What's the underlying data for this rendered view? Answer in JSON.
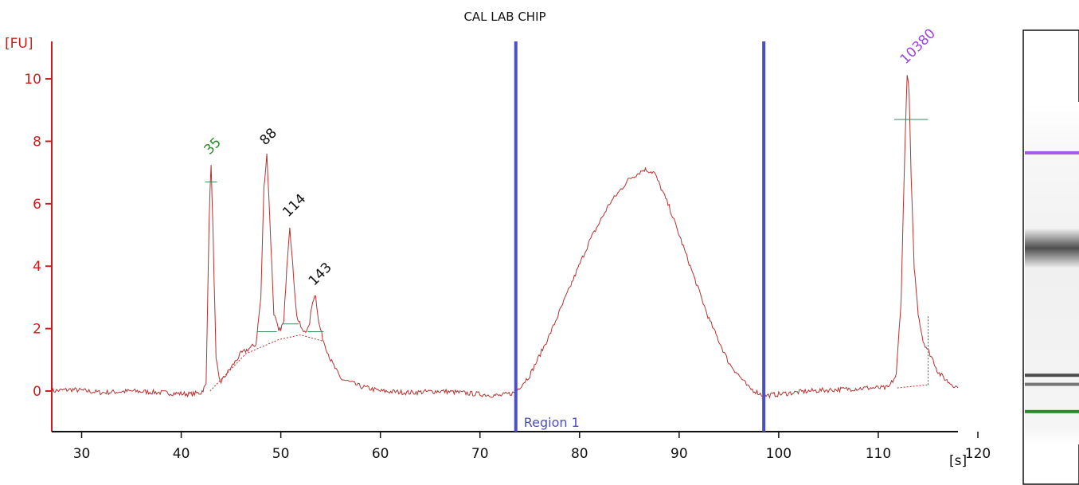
{
  "chart_data": {
    "type": "line",
    "title": "CAL LAB CHIP",
    "xlabel": "[s]",
    "ylabel": "[FU]",
    "xlim": [
      27,
      118
    ],
    "ylim": [
      -1.3,
      11.2
    ],
    "x_ticks": [
      30,
      40,
      50,
      60,
      70,
      80,
      90,
      100,
      110,
      120
    ],
    "y_ticks": [
      0,
      2,
      4,
      6,
      8,
      10
    ],
    "grid": false,
    "colors": {
      "trace": "#b5322f",
      "axis": "#d11a1a",
      "region": "#4b4fc2",
      "marker_label": "#2a8a2a",
      "upper_marker_label": "#9a46e6",
      "peak_label": "#111111"
    },
    "series": [
      {
        "x": [
          27,
          29,
          32,
          35,
          38,
          41,
          42,
          42.5,
          42.8,
          43.0,
          43.2,
          43.5,
          43.8,
          44,
          46,
          47.5,
          48.0,
          48.3,
          48.6,
          48.9,
          49.3,
          49.8,
          50.3,
          50.6,
          50.9,
          51.2,
          51.6,
          52.2,
          52.8,
          53.2,
          53.5,
          53.8,
          54.3,
          55,
          56,
          58,
          60,
          63,
          66,
          70,
          72,
          73.5,
          75,
          77,
          79,
          81,
          83,
          85,
          86.5,
          87.5,
          89,
          91,
          93,
          95,
          97,
          98.5,
          100,
          103,
          106,
          109,
          111,
          111.8,
          112.3,
          112.6,
          112.9,
          113.1,
          113.3,
          113.6,
          114.0,
          114.5,
          115.0,
          115.5,
          116,
          117,
          118
        ],
        "y": [
          0.0,
          0.05,
          -0.05,
          0.0,
          -0.05,
          -0.1,
          -0.05,
          0.2,
          5.5,
          7.3,
          5.0,
          1.0,
          0.4,
          0.3,
          1.2,
          1.5,
          3.0,
          6.5,
          7.6,
          5.5,
          2.5,
          1.9,
          2.2,
          4.0,
          5.3,
          4.0,
          2.4,
          1.9,
          2.0,
          2.9,
          3.1,
          2.2,
          1.6,
          1.0,
          0.4,
          0.15,
          0.0,
          -0.05,
          0.0,
          -0.1,
          -0.15,
          -0.05,
          0.5,
          1.8,
          3.3,
          4.8,
          6.0,
          6.8,
          7.1,
          7.0,
          5.9,
          4.1,
          2.3,
          0.9,
          0.1,
          -0.15,
          -0.1,
          0.0,
          0.05,
          0.1,
          0.1,
          0.5,
          3.0,
          7.0,
          10.2,
          9.5,
          6.8,
          4.0,
          2.5,
          1.6,
          1.3,
          1.0,
          0.6,
          0.3,
          0.1
        ]
      }
    ],
    "peak_labels": [
      {
        "text": "35",
        "x": 43.0,
        "y": 7.3,
        "role": "marker"
      },
      {
        "text": "88",
        "x": 48.6,
        "y": 7.6,
        "role": "peak"
      },
      {
        "text": "114",
        "x": 50.9,
        "y": 5.3,
        "role": "peak"
      },
      {
        "text": "143",
        "x": 53.5,
        "y": 3.1,
        "role": "peak"
      },
      {
        "text": "10380",
        "x": 112.9,
        "y": 10.2,
        "role": "upper_marker"
      }
    ],
    "peak_level_marks": [
      {
        "x1": 42.4,
        "x2": 43.6,
        "y": 6.7
      },
      {
        "x1": 47.6,
        "x2": 49.6,
        "y": 1.9
      },
      {
        "x1": 50.2,
        "x2": 51.8,
        "y": 2.15
      },
      {
        "x1": 52.7,
        "x2": 54.3,
        "y": 1.9
      },
      {
        "x1": 111.6,
        "x2": 115.0,
        "y": 8.7
      }
    ],
    "baselines": [
      {
        "x": [
          42.9,
          46.5,
          49.8,
          52.0,
          54.2
        ],
        "y": [
          0.0,
          1.2,
          1.65,
          1.8,
          1.6
        ]
      },
      {
        "x": [
          111.9,
          115.0
        ],
        "y": [
          0.1,
          0.2
        ]
      },
      {
        "x": [
          115.0,
          115.0
        ],
        "y": [
          0.2,
          2.4
        ]
      }
    ],
    "regions": [
      {
        "label": "Region 1",
        "x_start": 73.6,
        "x_end": 98.5
      }
    ],
    "gel_lane": {
      "bands": [
        {
          "pos": 0.27,
          "intensity": 0.9,
          "color": "#9a46e6"
        },
        {
          "pos": 0.48,
          "intensity": 0.85,
          "color": "#333333"
        },
        {
          "pos": 0.76,
          "intensity": 0.8,
          "color": "#222222"
        },
        {
          "pos": 0.78,
          "intensity": 0.6,
          "color": "#222222"
        },
        {
          "pos": 0.84,
          "intensity": 1.0,
          "color": "#2a8a2a"
        }
      ]
    }
  }
}
